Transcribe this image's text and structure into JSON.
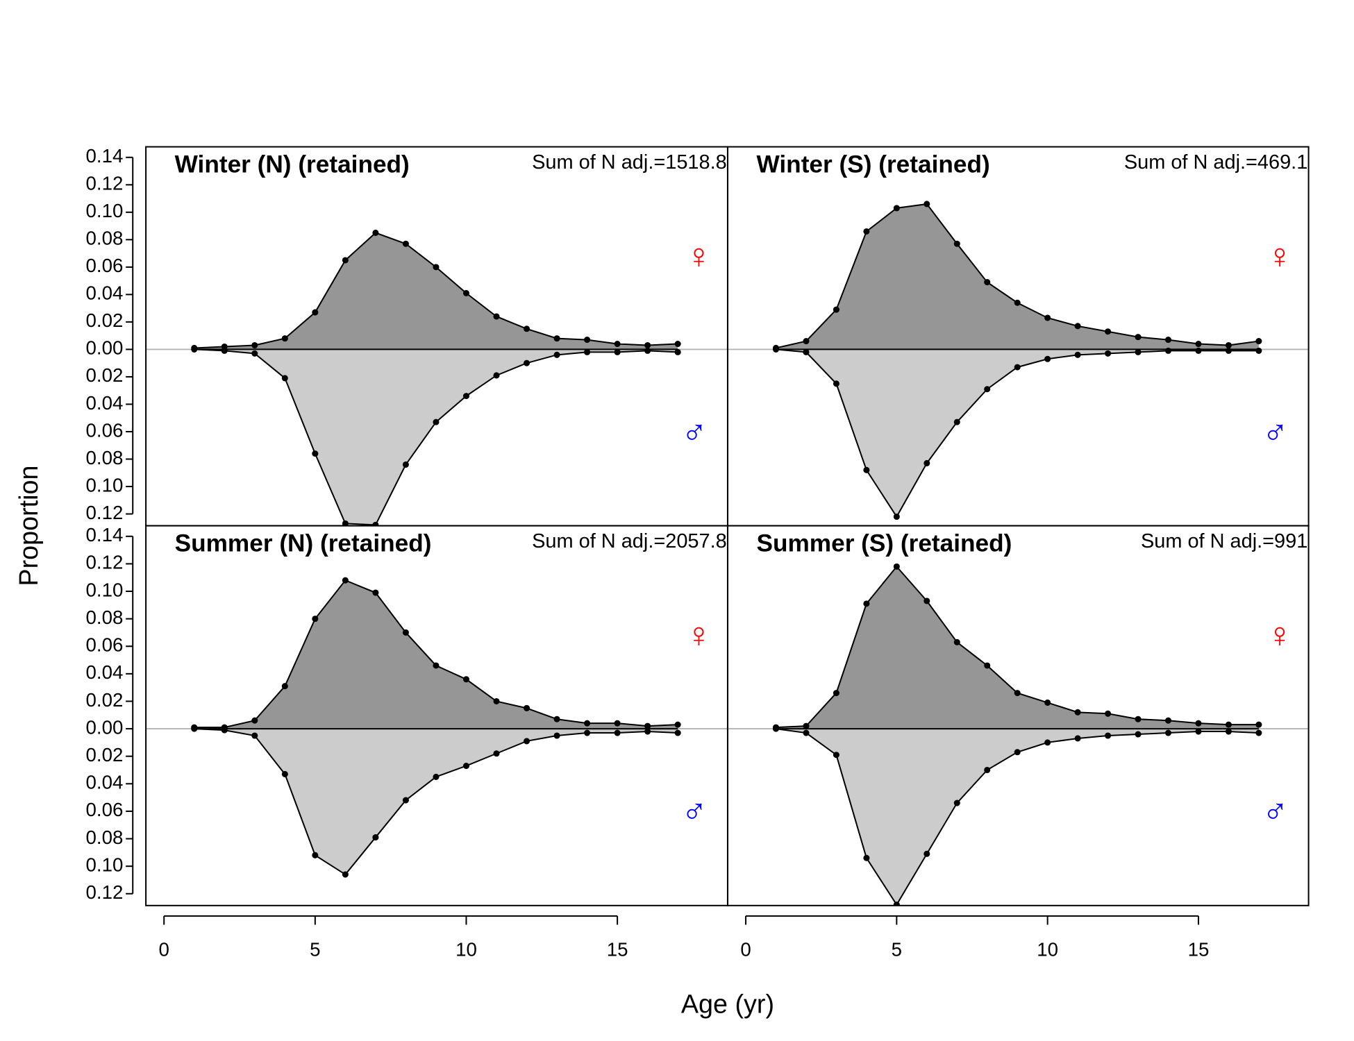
{
  "xlabel": "Age (yr)",
  "ylabel": "Proportion",
  "chart_data": [
    {
      "type": "area",
      "title": "Winter (N) (retained)",
      "annotation": "Sum of N adj.=1518.8",
      "x": [
        1,
        2,
        3,
        4,
        5,
        6,
        7,
        8,
        9,
        10,
        11,
        12,
        13,
        14,
        15,
        16,
        17
      ],
      "series": [
        {
          "name": "♀",
          "color": "#ff0000",
          "fill": "#969696",
          "values": [
            0.001,
            0.002,
            0.003,
            0.008,
            0.027,
            0.065,
            0.085,
            0.077,
            0.06,
            0.041,
            0.024,
            0.015,
            0.008,
            0.007,
            0.004,
            0.003,
            0.004
          ]
        },
        {
          "name": "♂",
          "color": "#0000ff",
          "fill": "#cccccc",
          "values": [
            0.0,
            0.001,
            0.003,
            0.021,
            0.076,
            0.127,
            0.128,
            0.084,
            0.053,
            0.034,
            0.019,
            0.01,
            0.004,
            0.002,
            0.002,
            0.001,
            0.002
          ]
        }
      ],
      "xlim": [
        -0.6,
        18.65
      ],
      "ylim": [
        -0.1286,
        0.1477
      ],
      "yticks": [
        0.14,
        0.12,
        {
          "value": 0.1,
          "label": "0.10"
        },
        0.08,
        0.06,
        0.04,
        0.02,
        {
          "value": 0,
          "label": "0.00"
        },
        {
          "value": -0.02,
          "label": "0.02"
        },
        {
          "value": -0.04,
          "label": "0.04"
        },
        {
          "value": -0.06,
          "label": "0.06"
        },
        {
          "value": -0.08,
          "label": "0.08"
        },
        {
          "value": -0.1,
          "label": "0.10"
        },
        {
          "value": -0.12,
          "label": "0.12"
        }
      ]
    },
    {
      "type": "area",
      "title": "Winter (S) (retained)",
      "annotation": "Sum of N adj.=469.1",
      "x": [
        1,
        2,
        3,
        4,
        5,
        6,
        7,
        8,
        9,
        10,
        11,
        12,
        13,
        14,
        15,
        16,
        17
      ],
      "series": [
        {
          "name": "♀",
          "color": "#ff0000",
          "fill": "#969696",
          "values": [
            0.001,
            0.006,
            0.029,
            0.086,
            0.103,
            0.106,
            0.077,
            0.049,
            0.034,
            0.023,
            0.017,
            0.013,
            0.009,
            0.007,
            0.004,
            0.003,
            0.006
          ]
        },
        {
          "name": "♂",
          "color": "#0000ff",
          "fill": "#cccccc",
          "values": [
            0.0,
            0.002,
            0.025,
            0.088,
            0.122,
            0.083,
            0.053,
            0.029,
            0.013,
            0.007,
            0.004,
            0.003,
            0.002,
            0.001,
            0.001,
            0.001,
            0.001
          ]
        }
      ],
      "xlim": [
        -0.6,
        18.65
      ],
      "ylim": [
        -0.1286,
        0.1477
      ]
    },
    {
      "type": "area",
      "title": "Summer (N) (retained)",
      "annotation": "Sum of N adj.=2057.8",
      "x": [
        1,
        2,
        3,
        4,
        5,
        6,
        7,
        8,
        9,
        10,
        11,
        12,
        13,
        14,
        15,
        16,
        17
      ],
      "series": [
        {
          "name": "♀",
          "color": "#ff0000",
          "fill": "#969696",
          "values": [
            0.001,
            0.001,
            0.006,
            0.031,
            0.08,
            0.108,
            0.099,
            0.07,
            0.046,
            0.036,
            0.02,
            0.015,
            0.007,
            0.004,
            0.004,
            0.002,
            0.003
          ]
        },
        {
          "name": "♂",
          "color": "#0000ff",
          "fill": "#cccccc",
          "values": [
            0.0,
            0.001,
            0.005,
            0.033,
            0.092,
            0.106,
            0.079,
            0.052,
            0.035,
            0.027,
            0.018,
            0.009,
            0.005,
            0.003,
            0.003,
            0.002,
            0.003
          ]
        }
      ],
      "xlim": [
        -0.6,
        18.65
      ],
      "ylim": [
        -0.1286,
        0.1477
      ],
      "xticks": [
        0,
        5,
        10,
        15
      ],
      "yticks": [
        0.14,
        0.12,
        {
          "value": 0.1,
          "label": "0.10"
        },
        0.08,
        0.06,
        0.04,
        0.02,
        {
          "value": 0,
          "label": "0.00"
        },
        {
          "value": -0.02,
          "label": "0.02"
        },
        {
          "value": -0.04,
          "label": "0.04"
        },
        {
          "value": -0.06,
          "label": "0.06"
        },
        {
          "value": -0.08,
          "label": "0.08"
        },
        {
          "value": -0.1,
          "label": "0.10"
        },
        {
          "value": -0.12,
          "label": "0.12"
        }
      ]
    },
    {
      "type": "area",
      "title": "Summer (S) (retained)",
      "annotation": "Sum of N adj.=991",
      "x": [
        1,
        2,
        3,
        4,
        5,
        6,
        7,
        8,
        9,
        10,
        11,
        12,
        13,
        14,
        15,
        16,
        17
      ],
      "series": [
        {
          "name": "♀",
          "color": "#ff0000",
          "fill": "#969696",
          "values": [
            0.001,
            0.002,
            0.026,
            0.091,
            0.118,
            0.093,
            0.063,
            0.046,
            0.026,
            0.019,
            0.012,
            0.011,
            0.007,
            0.006,
            0.004,
            0.003,
            0.003
          ]
        },
        {
          "name": "♂",
          "color": "#0000ff",
          "fill": "#cccccc",
          "values": [
            0.0,
            0.003,
            0.019,
            0.094,
            0.128,
            0.091,
            0.054,
            0.03,
            0.017,
            0.01,
            0.007,
            0.005,
            0.004,
            0.003,
            0.002,
            0.002,
            0.003
          ]
        }
      ],
      "xlim": [
        -0.6,
        18.65
      ],
      "ylim": [
        -0.1286,
        0.1477
      ],
      "xticks": [
        0,
        5,
        10,
        15
      ]
    }
  ]
}
